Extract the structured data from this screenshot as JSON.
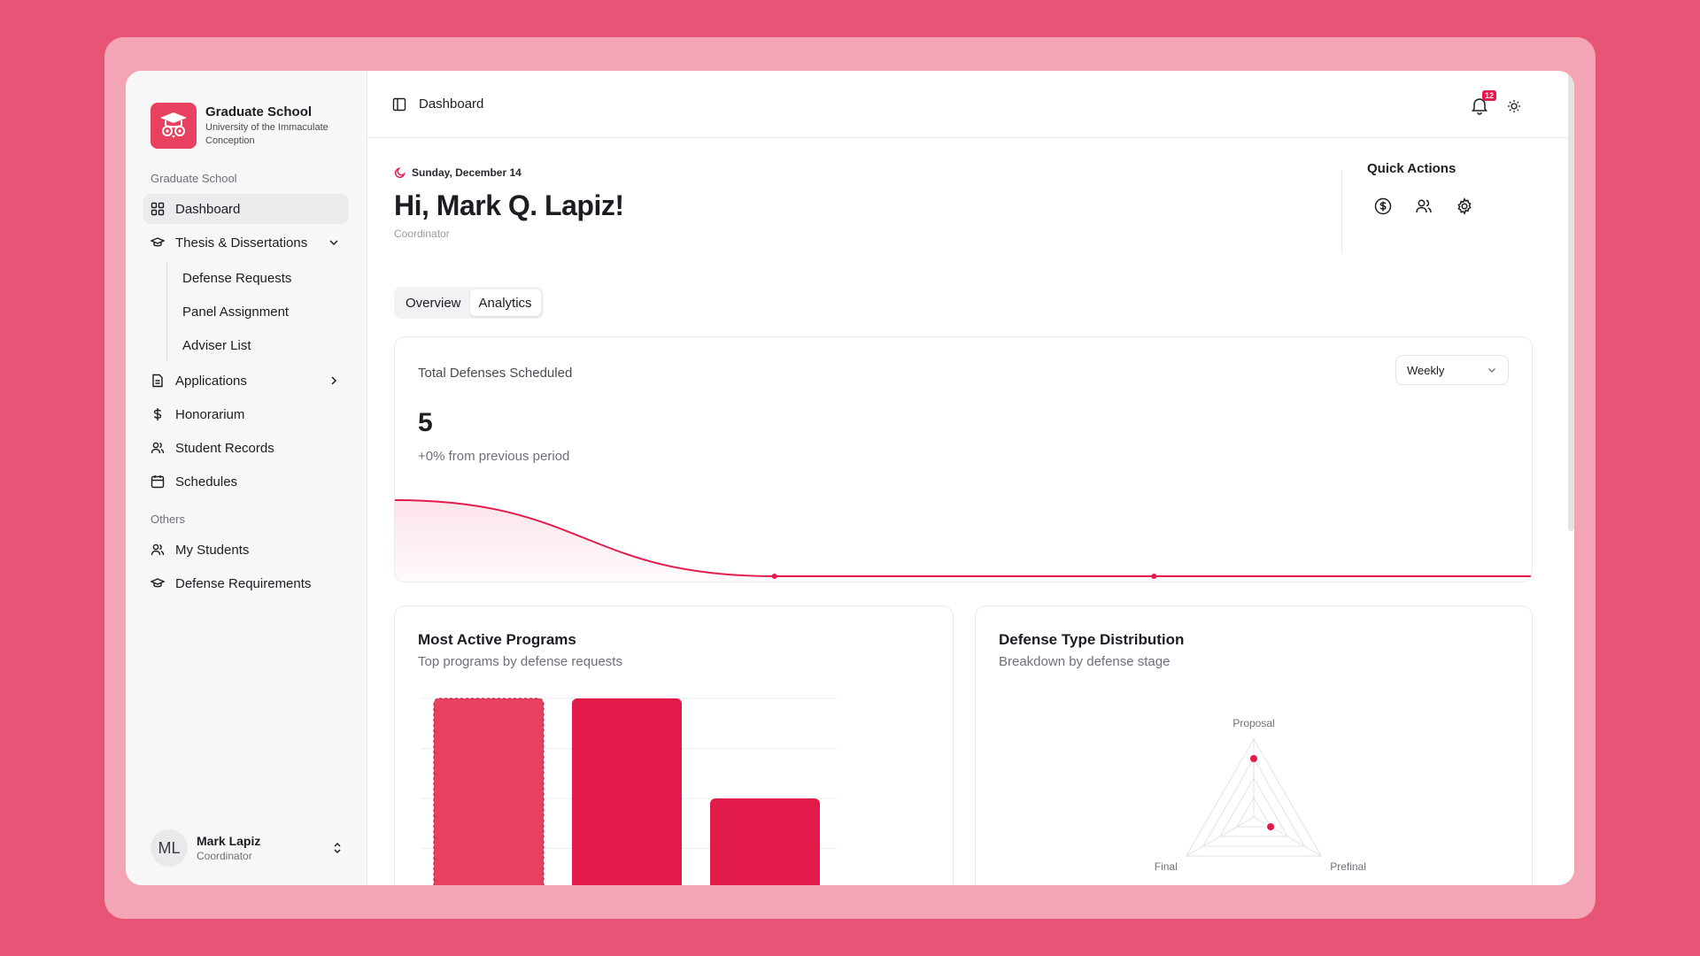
{
  "brand": {
    "title": "Graduate School",
    "subtitle": "University of the Immaculate Conception"
  },
  "sidebar": {
    "section_main": "Graduate School",
    "items": [
      {
        "label": "Dashboard",
        "icon": "grid-icon"
      },
      {
        "label": "Thesis & Dissertations",
        "icon": "graduation-cap-icon"
      },
      {
        "label": "Applications",
        "icon": "file-icon"
      },
      {
        "label": "Honorarium",
        "icon": "dollar-icon"
      },
      {
        "label": "Student Records",
        "icon": "users-icon"
      },
      {
        "label": "Schedules",
        "icon": "calendar-icon"
      }
    ],
    "thesis_sub": [
      "Defense Requests",
      "Panel Assignment",
      "Adviser List"
    ],
    "section_others": "Others",
    "others": [
      {
        "label": "My Students",
        "icon": "users-icon"
      },
      {
        "label": "Defense Requirements",
        "icon": "graduation-cap-icon"
      }
    ]
  },
  "user": {
    "initials": "ML",
    "name": "Mark Lapiz",
    "role": "Coordinator"
  },
  "topbar": {
    "breadcrumb": "Dashboard",
    "notification_count": "12"
  },
  "greeting": {
    "date": "Sunday, December 14",
    "title": "Hi, Mark Q. Lapiz!",
    "role": "Coordinator"
  },
  "quick_actions": {
    "title": "Quick Actions",
    "icons": [
      "dollar-circle-icon",
      "users-icon",
      "gear-icon"
    ]
  },
  "tabs": [
    "Overview",
    "Analytics"
  ],
  "active_tab": "Analytics",
  "total": {
    "label": "Total Defenses Scheduled",
    "value": "5",
    "delta": "+0% from previous period",
    "period": "Weekly"
  },
  "programs": {
    "title": "Most Active Programs",
    "subtitle": "Top programs by defense requests"
  },
  "distribution": {
    "title": "Defense Type Distribution",
    "subtitle": "Breakdown by defense stage"
  },
  "colors": {
    "accent": "#e31b4b",
    "brand": "#e8415f",
    "background": "#e85475"
  },
  "chart_data": [
    {
      "type": "area",
      "title": "Total Defenses Scheduled",
      "x": [
        1,
        2,
        3,
        4
      ],
      "values": [
        1,
        0,
        0,
        0
      ],
      "grid": false
    },
    {
      "type": "bar",
      "title": "Most Active Programs",
      "categories": [
        "",
        "",
        ""
      ],
      "values": [
        4,
        4,
        2
      ],
      "ylim": [
        0,
        4
      ],
      "grid": true
    },
    {
      "type": "radar",
      "title": "Defense Type Distribution",
      "categories": [
        "Proposal",
        "Prefinal",
        "Final"
      ],
      "values": [
        3,
        1,
        0
      ],
      "max": 4
    }
  ]
}
